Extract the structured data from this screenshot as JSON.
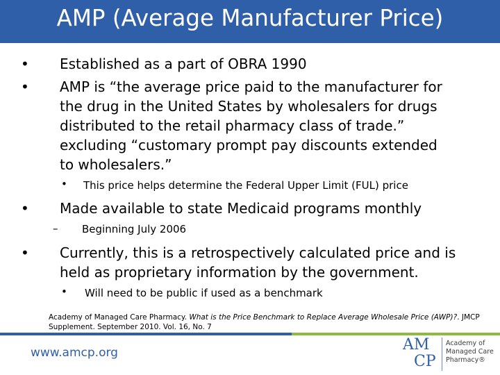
{
  "title": "AMP (Average Manufacturer Price)",
  "bullet_char": "•",
  "dash_char": "–",
  "items": [
    {
      "lines": [
        "Established as a part of OBRA 1990"
      ]
    },
    {
      "lines": [
        "AMP is “the average price paid to the manufacturer for",
        "the drug in the United States by wholesalers for drugs",
        "distributed to the retail pharmacy class of trade.”",
        "excluding “customary prompt pay discounts extended",
        "to wholesalers.”"
      ]
    },
    {
      "lines": [
        "This price helps determine the Federal Upper Limit (FUL) price"
      ]
    },
    {
      "lines": [
        "Made available to state Medicaid programs monthly"
      ]
    },
    {
      "lines": [
        "Beginning July 2006"
      ]
    },
    {
      "lines": [
        "Currently, this is a retrospectively calculated price and is",
        "held as proprietary information by the government."
      ]
    },
    {
      "lines": [
        "Will need to be public if used as a benchmark"
      ]
    }
  ],
  "citation": {
    "prefix": "Academy of Managed Care Pharmacy. ",
    "title": "What is the Price Benchmark to Replace Average Wholesale Price (AWP)?",
    "suffix": ". JMCP",
    "line2": "Supplement. September 2010. Vol. 16, No. 7"
  },
  "footer": {
    "website": "www.amcp.org",
    "logo_mark_top": "AM",
    "logo_mark_bottom": "CP",
    "logo_lines": [
      "Academy of",
      "Managed Care",
      "Pharmacy®"
    ]
  },
  "colors": {
    "brand_blue": "#2f5fa8",
    "brand_green": "#8dbb3e"
  }
}
